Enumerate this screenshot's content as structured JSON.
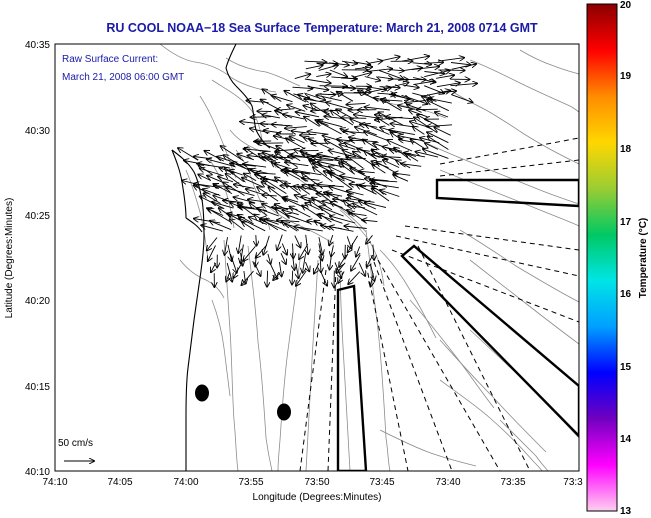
{
  "title": "RU COOL  NOAA−18  Sea Surface Temperature:  March 21, 2008 0714 GMT",
  "annotation": {
    "line1": "Raw Surface Current:",
    "line2": "March 21, 2008 06:00 GMT"
  },
  "scale_label": "50 cm/s",
  "axes": {
    "xlabel": "Longitude (Degrees:Minutes)",
    "ylabel": "Latitude (Degrees:Minutes)",
    "x_ticks": [
      "74:10",
      "74:05",
      "74:00",
      "73:55",
      "73:50",
      "73:45",
      "73:40",
      "73:35",
      "73:3"
    ],
    "y_ticks": [
      "40:35",
      "40:30",
      "40:25",
      "40:20",
      "40:15",
      "40:10"
    ]
  },
  "colorbar": {
    "label": "Temperature (°C)",
    "ticks": [
      "20",
      "19",
      "18",
      "17",
      "16",
      "15",
      "14",
      "13"
    ],
    "stops": [
      "#8b0000",
      "#ff0000",
      "#ff8c00",
      "#ffd700",
      "#9acd32",
      "#00c864",
      "#00e5e5",
      "#00a0ff",
      "#0000ff",
      "#7000c0",
      "#ff00ff",
      "#ffd0f0"
    ]
  },
  "colors": {
    "title": "#1a1aa8",
    "land": "#ffffff",
    "water": "#ffffff",
    "contour": "#8c8c8c",
    "coastline": "#000000"
  }
}
